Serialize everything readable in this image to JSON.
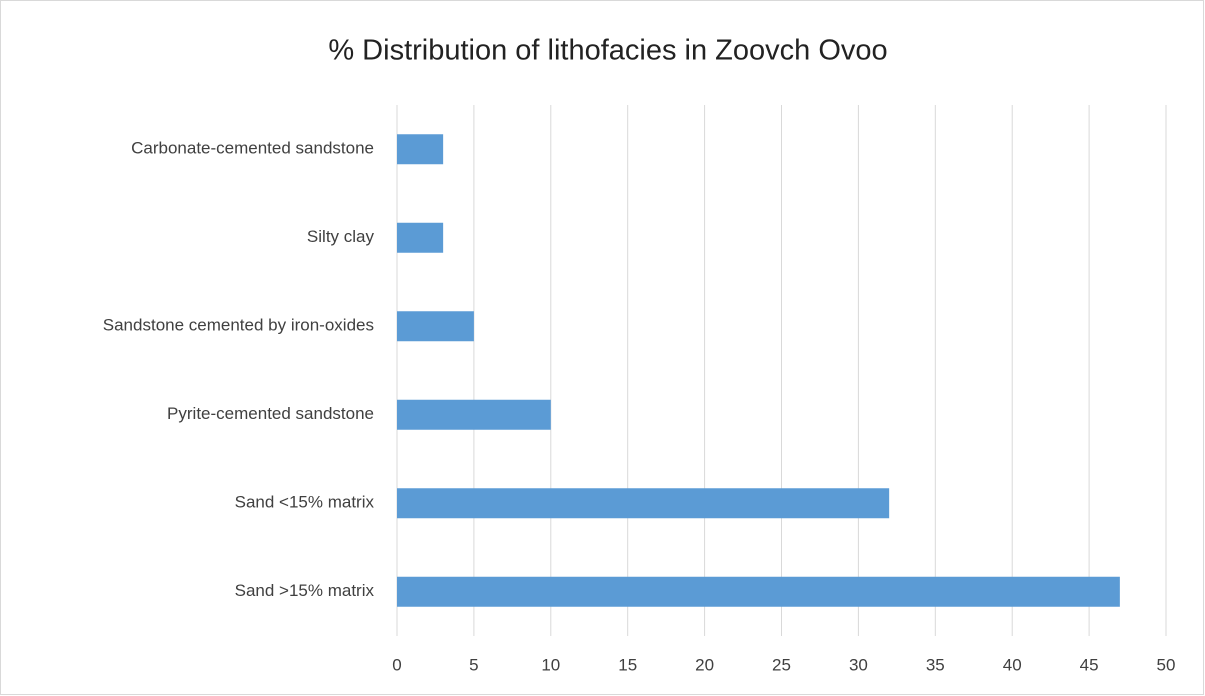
{
  "chart_data": {
    "type": "bar",
    "orientation": "horizontal",
    "title": "% Distribution of lithofacies in Zoovch Ovoo",
    "categories": [
      "Sand >15% matrix",
      "Sand <15% matrix",
      "Pyrite-cemented sandstone",
      "Sandstone cemented by iron-oxides",
      "Silty clay",
      "Carbonate-cemented sandstone"
    ],
    "values": [
      47,
      32,
      10,
      5,
      3,
      3
    ],
    "color": "#5b9bd5",
    "xlim": [
      0,
      50
    ],
    "xticks": [
      0,
      5,
      10,
      15,
      20,
      25,
      30,
      35,
      40,
      45,
      50
    ],
    "grid": true
  }
}
